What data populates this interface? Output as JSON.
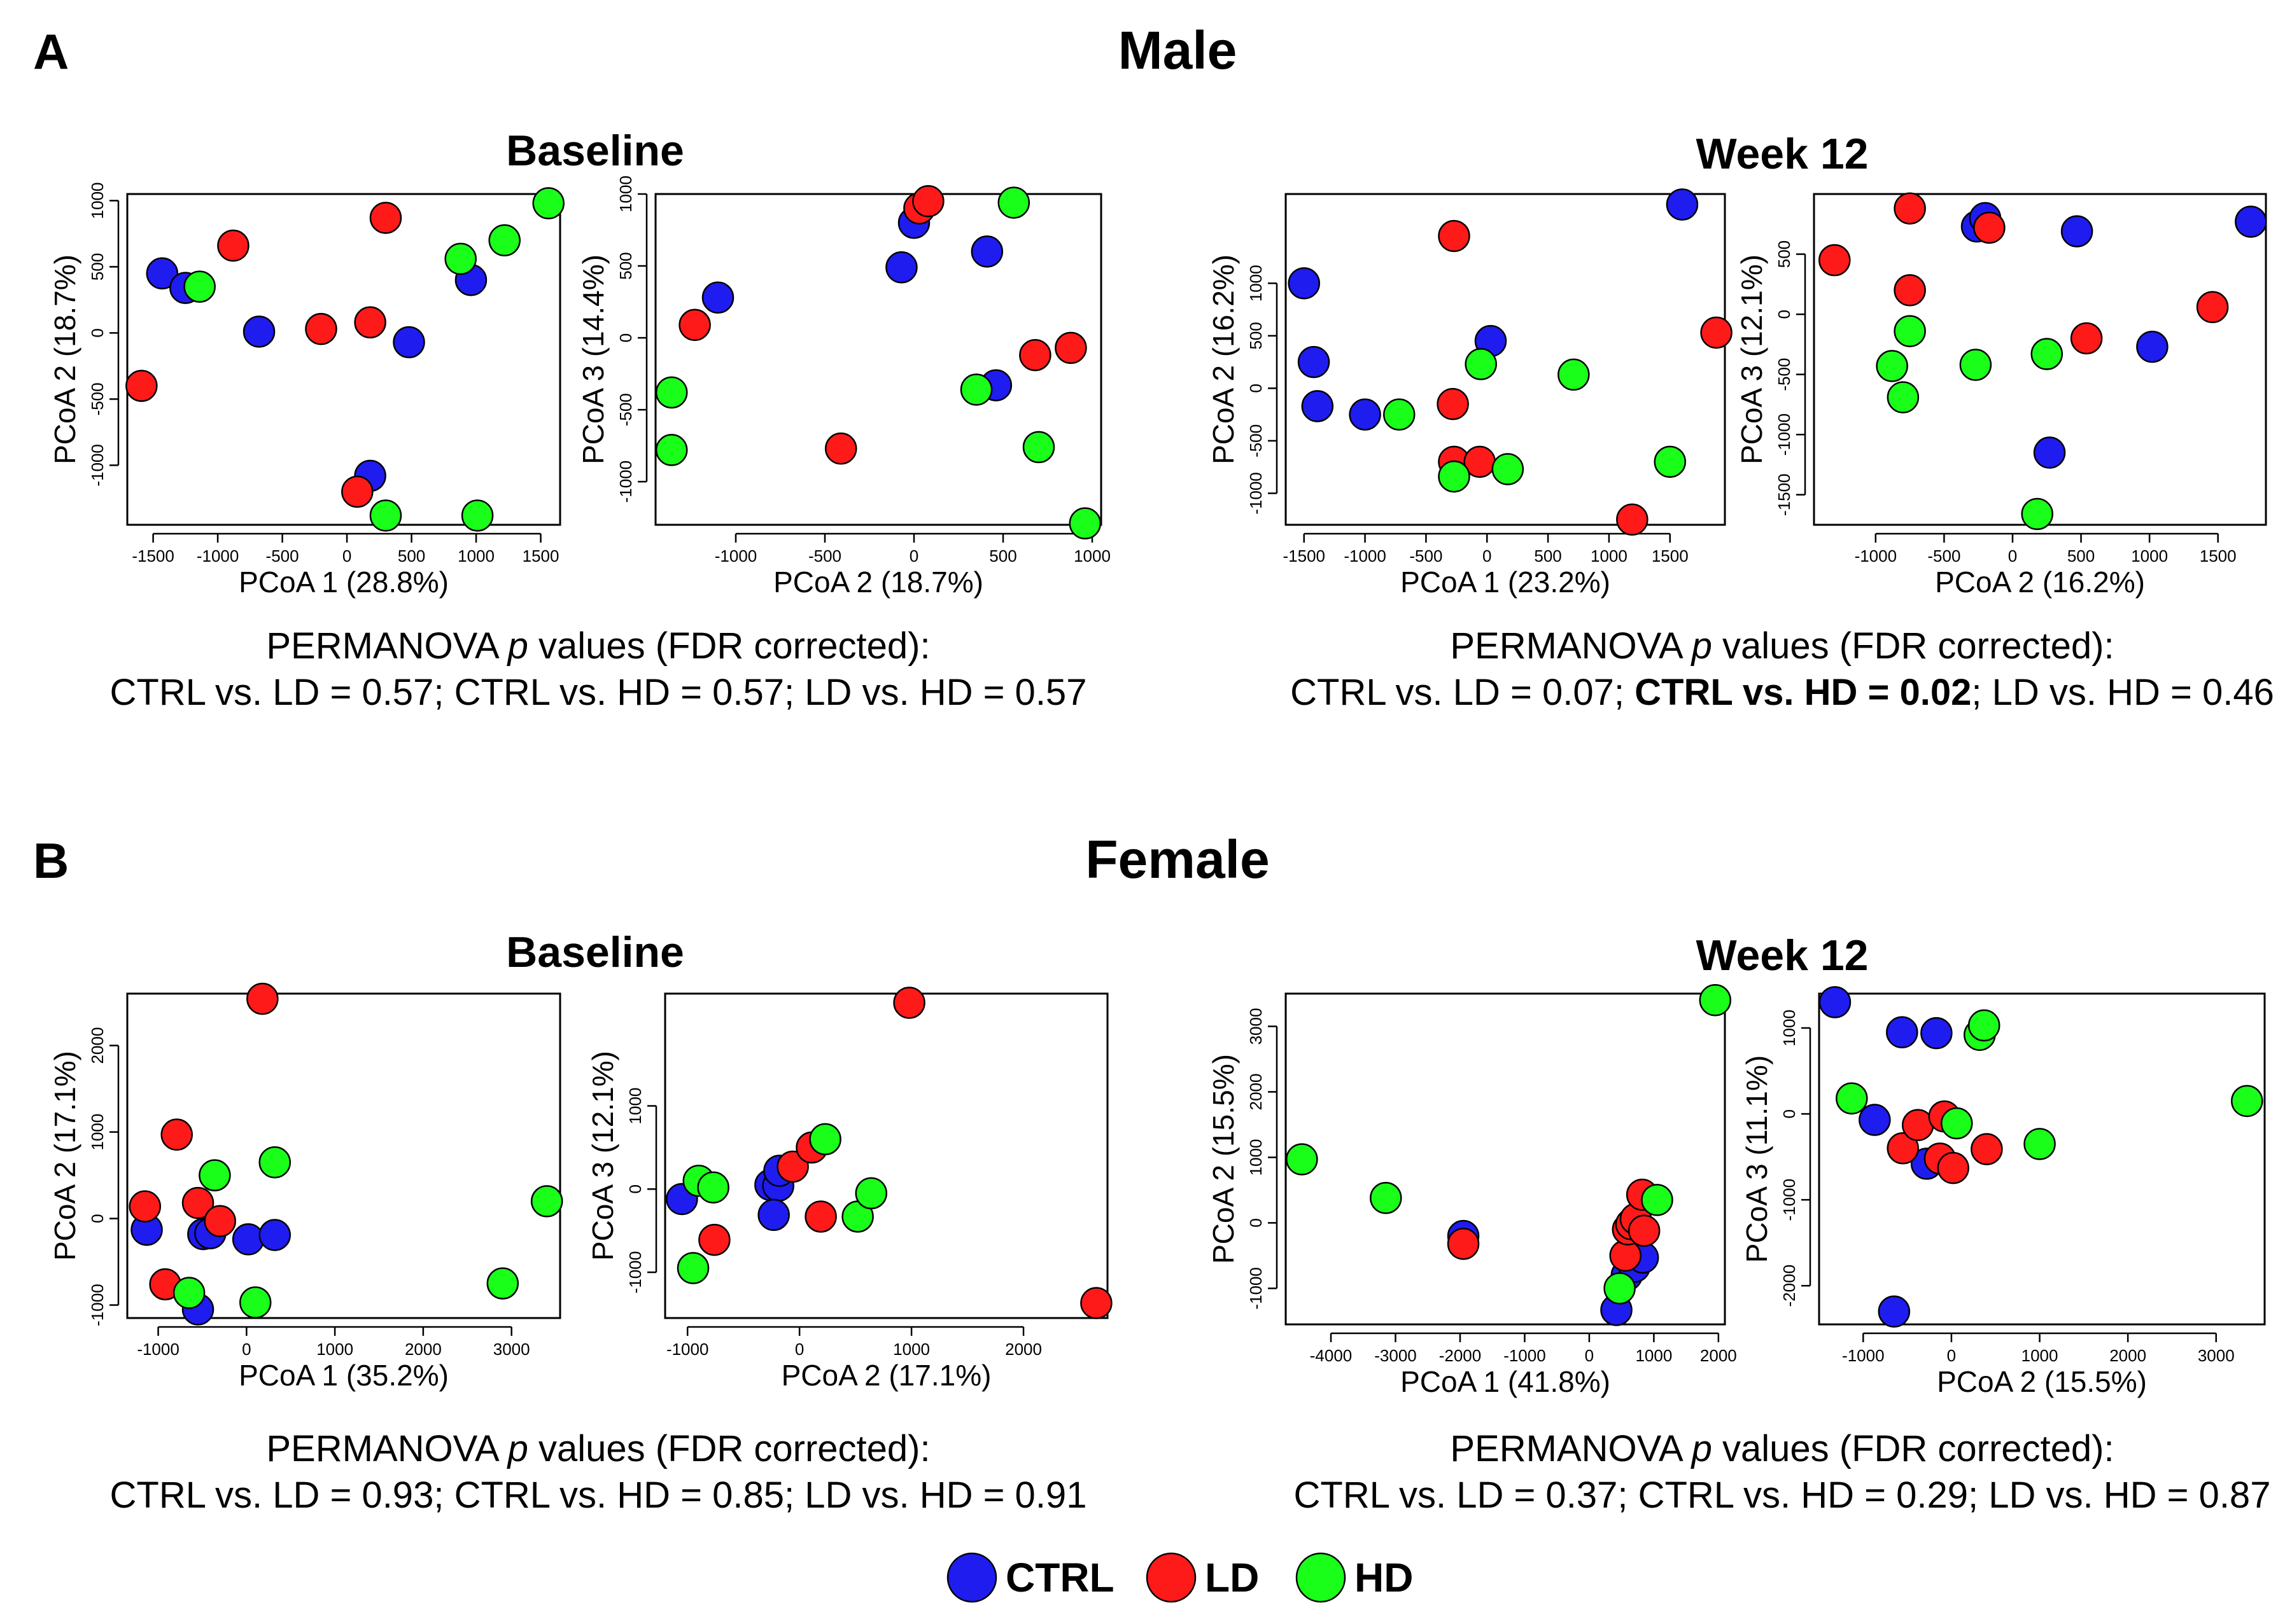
{
  "legend": [
    {
      "label": "CTRL",
      "color": "#1f1cf0"
    },
    {
      "label": "LD",
      "color": "#ff1a1a"
    },
    {
      "label": "HD",
      "color": "#1aff1a"
    }
  ],
  "panels": [
    {
      "letter": "A",
      "sex": "Male"
    },
    {
      "letter": "B",
      "sex": "Female"
    }
  ],
  "permanova": {
    "male_baseline": {
      "line1_pre": "PERMANOVA ",
      "p": "p",
      "line1_post": " values (FDR corrected):",
      "line2": [
        {
          "text": "CTRL vs. LD = 0.57; ",
          "bold": false
        },
        {
          "text": "CTRL vs. HD = 0.57; ",
          "bold": false
        },
        {
          "text": "LD vs. HD = 0.57",
          "bold": false
        }
      ]
    },
    "male_week12": {
      "line1_pre": "PERMANOVA ",
      "p": "p",
      "line1_post": " values (FDR corrected):",
      "line2": [
        {
          "text": "CTRL vs. LD = 0.07; ",
          "bold": false
        },
        {
          "text": "CTRL vs. HD = 0.02",
          "bold": true
        },
        {
          "text": "; LD vs. HD = 0.46",
          "bold": false
        }
      ]
    },
    "female_baseline": {
      "line1_pre": "PERMANOVA ",
      "p": "p",
      "line1_post": " values (FDR corrected):",
      "line2": [
        {
          "text": "CTRL vs. LD = 0.93; ",
          "bold": false
        },
        {
          "text": "CTRL vs. HD = 0.85; ",
          "bold": false
        },
        {
          "text": "LD vs. HD = 0.91",
          "bold": false
        }
      ]
    },
    "female_week12": {
      "line1_pre": "PERMANOVA ",
      "p": "p",
      "line1_post": " values (FDR corrected):",
      "line2": [
        {
          "text": "CTRL vs. LD = 0.37; ",
          "bold": false
        },
        {
          "text": "CTRL vs. HD = 0.29; ",
          "bold": false
        },
        {
          "text": "LD vs. HD = 0.87",
          "bold": false
        }
      ]
    }
  },
  "chart_data": [
    {
      "id": "male_baseline_pc12",
      "type": "scatter",
      "panel": "A",
      "sex": "Male",
      "condition": "Baseline",
      "xlabel": "PCoA 1 (28.8%)",
      "ylabel": "PCoA 2 (18.7%)",
      "xlim": [
        -1700,
        1650
      ],
      "ylim": [
        -1450,
        1050
      ],
      "xticks": [
        -1500,
        -1000,
        -500,
        0,
        500,
        1000,
        1500
      ],
      "yticks": [
        -1000,
        -500,
        0,
        500,
        1000
      ],
      "points": [
        {
          "x": -1430,
          "y": 450,
          "g": "CTRL"
        },
        {
          "x": -1250,
          "y": 340,
          "g": "CTRL"
        },
        {
          "x": -680,
          "y": 10,
          "g": "CTRL"
        },
        {
          "x": 480,
          "y": -70,
          "g": "CTRL"
        },
        {
          "x": 960,
          "y": 400,
          "g": "CTRL"
        },
        {
          "x": 180,
          "y": -1080,
          "g": "CTRL"
        },
        {
          "x": -1590,
          "y": -400,
          "g": "LD"
        },
        {
          "x": -880,
          "y": 660,
          "g": "LD"
        },
        {
          "x": -200,
          "y": 30,
          "g": "LD"
        },
        {
          "x": 180,
          "y": 80,
          "g": "LD"
        },
        {
          "x": 300,
          "y": 870,
          "g": "LD"
        },
        {
          "x": 80,
          "y": -1200,
          "g": "LD"
        },
        {
          "x": -1140,
          "y": 350,
          "g": "HD"
        },
        {
          "x": 880,
          "y": 560,
          "g": "HD"
        },
        {
          "x": 1220,
          "y": 700,
          "g": "HD"
        },
        {
          "x": 1560,
          "y": 980,
          "g": "HD"
        },
        {
          "x": 300,
          "y": -1380,
          "g": "HD"
        },
        {
          "x": 1010,
          "y": -1380,
          "g": "HD"
        }
      ]
    },
    {
      "id": "male_baseline_pc23",
      "type": "scatter",
      "panel": "A",
      "sex": "Male",
      "condition": "Baseline",
      "xlabel": "PCoA 2 (18.7%)",
      "ylabel": "PCoA 3 (14.4%)",
      "xlim": [
        -1450,
        1050
      ],
      "ylim": [
        -1300,
        1000
      ],
      "xticks": [
        -1000,
        -500,
        0,
        500,
        1000
      ],
      "yticks": [
        -1000,
        -500,
        0,
        500,
        1000
      ],
      "points": [
        {
          "x": -1100,
          "y": 280,
          "g": "CTRL"
        },
        {
          "x": -70,
          "y": 490,
          "g": "CTRL"
        },
        {
          "x": 0,
          "y": 800,
          "g": "CTRL"
        },
        {
          "x": 410,
          "y": 600,
          "g": "CTRL"
        },
        {
          "x": 460,
          "y": -330,
          "g": "CTRL"
        },
        {
          "x": -1230,
          "y": 90,
          "g": "LD"
        },
        {
          "x": -410,
          "y": -770,
          "g": "LD"
        },
        {
          "x": 30,
          "y": 900,
          "g": "LD"
        },
        {
          "x": 80,
          "y": 950,
          "g": "LD"
        },
        {
          "x": 680,
          "y": -120,
          "g": "LD"
        },
        {
          "x": 880,
          "y": -70,
          "g": "LD"
        },
        {
          "x": -1360,
          "y": -380,
          "g": "HD"
        },
        {
          "x": -1360,
          "y": -780,
          "g": "HD"
        },
        {
          "x": 350,
          "y": -360,
          "g": "HD"
        },
        {
          "x": 560,
          "y": 940,
          "g": "HD"
        },
        {
          "x": 700,
          "y": -760,
          "g": "HD"
        },
        {
          "x": 960,
          "y": -1290,
          "g": "HD"
        }
      ]
    },
    {
      "id": "male_week12_pc12",
      "type": "scatter",
      "panel": "A",
      "sex": "Male",
      "condition": "Week 12",
      "xlabel": "PCoA 1 (23.2%)",
      "ylabel": "PCoA 2 (16.2%)",
      "xlim": [
        -1650,
        1950
      ],
      "ylim": [
        -1300,
        1850
      ],
      "xticks": [
        -1500,
        -1000,
        -500,
        0,
        500,
        1000,
        1500
      ],
      "yticks": [
        -1000,
        -500,
        0,
        500,
        1000
      ],
      "points": [
        {
          "x": -1500,
          "y": 1000,
          "g": "CTRL"
        },
        {
          "x": -1420,
          "y": 250,
          "g": "CTRL"
        },
        {
          "x": -1390,
          "y": -170,
          "g": "CTRL"
        },
        {
          "x": -1000,
          "y": -250,
          "g": "CTRL"
        },
        {
          "x": 30,
          "y": 450,
          "g": "CTRL"
        },
        {
          "x": 1600,
          "y": 1750,
          "g": "CTRL"
        },
        {
          "x": -270,
          "y": 1450,
          "g": "LD"
        },
        {
          "x": -280,
          "y": -150,
          "g": "LD"
        },
        {
          "x": -270,
          "y": -700,
          "g": "LD"
        },
        {
          "x": -60,
          "y": -700,
          "g": "LD"
        },
        {
          "x": 1190,
          "y": -1250,
          "g": "LD"
        },
        {
          "x": 1880,
          "y": 530,
          "g": "LD"
        },
        {
          "x": -720,
          "y": -250,
          "g": "HD"
        },
        {
          "x": -270,
          "y": -840,
          "g": "HD"
        },
        {
          "x": -50,
          "y": 230,
          "g": "HD"
        },
        {
          "x": 170,
          "y": -770,
          "g": "HD"
        },
        {
          "x": 710,
          "y": 130,
          "g": "HD"
        },
        {
          "x": 1500,
          "y": -700,
          "g": "HD"
        }
      ]
    },
    {
      "id": "male_week12_pc23",
      "type": "scatter",
      "panel": "A",
      "sex": "Male",
      "condition": "Week 12",
      "xlabel": "PCoA 2 (16.2%)",
      "ylabel": "PCoA 3 (12.1%)",
      "xlim": [
        -1450,
        1850
      ],
      "ylim": [
        -1750,
        1000
      ],
      "xticks": [
        -1000,
        -500,
        0,
        500,
        1000,
        1500
      ],
      "yticks": [
        -1500,
        -1000,
        -500,
        0,
        500
      ],
      "points": [
        {
          "x": -260,
          "y": 730,
          "g": "CTRL"
        },
        {
          "x": -200,
          "y": 800,
          "g": "CTRL"
        },
        {
          "x": 470,
          "y": 690,
          "g": "CTRL"
        },
        {
          "x": 1740,
          "y": 770,
          "g": "CTRL"
        },
        {
          "x": 1020,
          "y": -270,
          "g": "CTRL"
        },
        {
          "x": 270,
          "y": -1150,
          "g": "CTRL"
        },
        {
          "x": -1300,
          "y": 450,
          "g": "LD"
        },
        {
          "x": -750,
          "y": 880,
          "g": "LD"
        },
        {
          "x": -750,
          "y": 200,
          "g": "LD"
        },
        {
          "x": -170,
          "y": 720,
          "g": "LD"
        },
        {
          "x": 540,
          "y": -200,
          "g": "LD"
        },
        {
          "x": 1460,
          "y": 60,
          "g": "LD"
        },
        {
          "x": -880,
          "y": -430,
          "g": "HD"
        },
        {
          "x": -750,
          "y": -140,
          "g": "HD"
        },
        {
          "x": -800,
          "y": -690,
          "g": "HD"
        },
        {
          "x": -270,
          "y": -420,
          "g": "HD"
        },
        {
          "x": 250,
          "y": -330,
          "g": "HD"
        },
        {
          "x": 180,
          "y": -1660,
          "g": "HD"
        }
      ]
    },
    {
      "id": "female_baseline_pc12",
      "type": "scatter",
      "panel": "B",
      "sex": "Female",
      "condition": "Baseline",
      "xlabel": "PCoA 1 (35.2%)",
      "ylabel": "PCoA 2 (17.1%)",
      "xlim": [
        -1350,
        3550
      ],
      "ylim": [
        -1150,
        2600
      ],
      "xticks": [
        -1000,
        0,
        1000,
        2000,
        3000
      ],
      "yticks": [
        -1000,
        0,
        1000,
        2000
      ],
      "points": [
        {
          "x": -1130,
          "y": -130,
          "g": "CTRL"
        },
        {
          "x": -550,
          "y": -1050,
          "g": "CTRL"
        },
        {
          "x": -490,
          "y": -180,
          "g": "CTRL"
        },
        {
          "x": -410,
          "y": -170,
          "g": "CTRL"
        },
        {
          "x": 20,
          "y": -240,
          "g": "CTRL"
        },
        {
          "x": 320,
          "y": -190,
          "g": "CTRL"
        },
        {
          "x": -1150,
          "y": 140,
          "g": "LD"
        },
        {
          "x": -920,
          "y": -760,
          "g": "LD"
        },
        {
          "x": -790,
          "y": 970,
          "g": "LD"
        },
        {
          "x": -550,
          "y": 180,
          "g": "LD"
        },
        {
          "x": -300,
          "y": -30,
          "g": "LD"
        },
        {
          "x": 180,
          "y": 2540,
          "g": "LD"
        },
        {
          "x": -650,
          "y": -860,
          "g": "HD"
        },
        {
          "x": -360,
          "y": 500,
          "g": "HD"
        },
        {
          "x": 100,
          "y": -970,
          "g": "HD"
        },
        {
          "x": 320,
          "y": 650,
          "g": "HD"
        },
        {
          "x": 2900,
          "y": -750,
          "g": "HD"
        },
        {
          "x": 3400,
          "y": 200,
          "g": "HD"
        }
      ]
    },
    {
      "id": "female_baseline_pc23",
      "type": "scatter",
      "panel": "B",
      "sex": "Female",
      "condition": "Baseline",
      "xlabel": "PCoA 2 (17.1%)",
      "ylabel": "PCoA 3 (12.1%)",
      "xlim": [
        -1200,
        2750
      ],
      "ylim": [
        -1550,
        2350
      ],
      "xticks": [
        -1000,
        0,
        1000,
        2000
      ],
      "yticks": [
        -1000,
        0,
        1000
      ],
      "points": [
        {
          "x": -1050,
          "y": -120,
          "g": "CTRL"
        },
        {
          "x": -260,
          "y": 50,
          "g": "CTRL"
        },
        {
          "x": -190,
          "y": 40,
          "g": "CTRL"
        },
        {
          "x": -180,
          "y": 220,
          "g": "CTRL"
        },
        {
          "x": -230,
          "y": -310,
          "g": "CTRL"
        },
        {
          "x": -760,
          "y": -610,
          "g": "LD"
        },
        {
          "x": -60,
          "y": 270,
          "g": "LD"
        },
        {
          "x": 110,
          "y": 500,
          "g": "LD"
        },
        {
          "x": 190,
          "y": -330,
          "g": "LD"
        },
        {
          "x": 980,
          "y": 2240,
          "g": "LD"
        },
        {
          "x": 2650,
          "y": -1370,
          "g": "LD"
        },
        {
          "x": -900,
          "y": 100,
          "g": "HD"
        },
        {
          "x": -770,
          "y": 20,
          "g": "HD"
        },
        {
          "x": -950,
          "y": -950,
          "g": "HD"
        },
        {
          "x": 230,
          "y": 600,
          "g": "HD"
        },
        {
          "x": 520,
          "y": -330,
          "g": "HD"
        },
        {
          "x": 640,
          "y": -50,
          "g": "HD"
        }
      ]
    },
    {
      "id": "female_week12_pc12",
      "type": "scatter",
      "panel": "B",
      "sex": "Female",
      "condition": "Week 12",
      "xlabel": "PCoA 1 (41.8%)",
      "ylabel": "PCoA 2 (15.5%)",
      "xlim": [
        -4700,
        2100
      ],
      "ylim": [
        -1550,
        3500
      ],
      "xticks": [
        -4000,
        -3000,
        -2000,
        -1000,
        0,
        1000,
        2000
      ],
      "yticks": [
        -1000,
        0,
        1000,
        2000,
        3000
      ],
      "points": [
        {
          "x": -1950,
          "y": -200,
          "g": "CTRL"
        },
        {
          "x": 420,
          "y": -1330,
          "g": "CTRL"
        },
        {
          "x": 580,
          "y": -800,
          "g": "CTRL"
        },
        {
          "x": 700,
          "y": -670,
          "g": "CTRL"
        },
        {
          "x": 830,
          "y": -530,
          "g": "CTRL"
        },
        {
          "x": -1950,
          "y": -320,
          "g": "LD"
        },
        {
          "x": 560,
          "y": -500,
          "g": "LD"
        },
        {
          "x": 600,
          "y": -100,
          "g": "LD"
        },
        {
          "x": 650,
          "y": -20,
          "g": "LD"
        },
        {
          "x": 720,
          "y": 60,
          "g": "LD"
        },
        {
          "x": 820,
          "y": 430,
          "g": "LD"
        },
        {
          "x": 850,
          "y": -120,
          "g": "LD"
        },
        {
          "x": -4450,
          "y": 970,
          "g": "HD"
        },
        {
          "x": -3150,
          "y": 380,
          "g": "HD"
        },
        {
          "x": 470,
          "y": -1000,
          "g": "HD"
        },
        {
          "x": 1050,
          "y": 350,
          "g": "HD"
        },
        {
          "x": 1950,
          "y": 3400,
          "g": "HD"
        }
      ]
    },
    {
      "id": "female_week12_pc23",
      "type": "scatter",
      "panel": "B",
      "sex": "Female",
      "condition": "Week 12",
      "xlabel": "PCoA 2 (15.5%)",
      "ylabel": "PCoA 3 (11.1%)",
      "xlim": [
        -1500,
        3550
      ],
      "ylim": [
        -2450,
        1400
      ],
      "xticks": [
        -1000,
        0,
        1000,
        2000,
        3000
      ],
      "yticks": [
        -2000,
        -1000,
        0,
        1000
      ],
      "points": [
        {
          "x": -1320,
          "y": 1300,
          "g": "CTRL"
        },
        {
          "x": -560,
          "y": 950,
          "g": "CTRL"
        },
        {
          "x": -170,
          "y": 940,
          "g": "CTRL"
        },
        {
          "x": -870,
          "y": -70,
          "g": "CTRL"
        },
        {
          "x": -280,
          "y": -580,
          "g": "CTRL"
        },
        {
          "x": -650,
          "y": -2300,
          "g": "CTRL"
        },
        {
          "x": -550,
          "y": -400,
          "g": "LD"
        },
        {
          "x": -380,
          "y": -130,
          "g": "LD"
        },
        {
          "x": -80,
          "y": -30,
          "g": "LD"
        },
        {
          "x": -130,
          "y": -520,
          "g": "LD"
        },
        {
          "x": 20,
          "y": -630,
          "g": "LD"
        },
        {
          "x": 400,
          "y": -410,
          "g": "LD"
        },
        {
          "x": -1130,
          "y": 180,
          "g": "HD"
        },
        {
          "x": 60,
          "y": -110,
          "g": "HD"
        },
        {
          "x": 320,
          "y": 920,
          "g": "HD"
        },
        {
          "x": 370,
          "y": 1030,
          "g": "HD"
        },
        {
          "x": 1000,
          "y": -350,
          "g": "HD"
        },
        {
          "x": 3350,
          "y": 150,
          "g": "HD"
        }
      ]
    }
  ]
}
